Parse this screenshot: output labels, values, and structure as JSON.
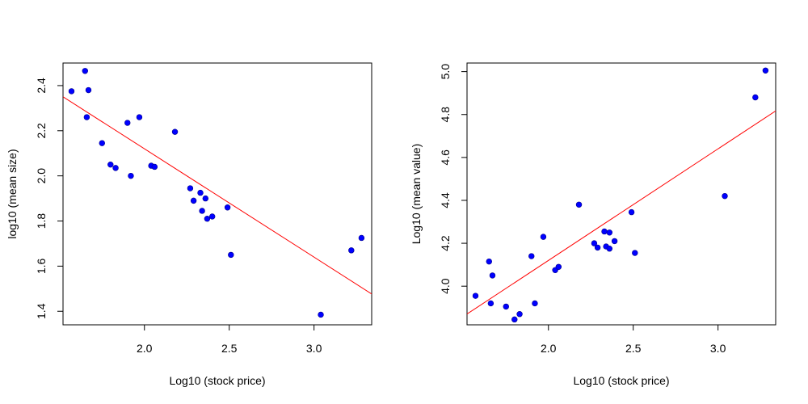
{
  "chart_data": [
    {
      "type": "scatter",
      "xlabel": "Log10 (stock price)",
      "ylabel": "log10 (mean size)",
      "xlim": [
        1.52,
        3.34
      ],
      "ylim": [
        1.34,
        2.5
      ],
      "x_ticks": [
        2.0,
        2.5,
        3.0
      ],
      "x_tick_labels": [
        "2.0",
        "2.5",
        "3.0"
      ],
      "y_ticks": [
        1.4,
        1.6,
        1.8,
        2.0,
        2.2,
        2.4
      ],
      "y_tick_labels": [
        "1.4",
        "1.6",
        "1.8",
        "2.0",
        "2.2",
        "2.4"
      ],
      "grid": false,
      "point_color": "#0000ff",
      "line_color": "#ff0000",
      "fit_line": {
        "intercept": 3.08,
        "slope": -0.48
      },
      "points": [
        {
          "x": 1.57,
          "y": 2.375
        },
        {
          "x": 1.65,
          "y": 2.465
        },
        {
          "x": 1.66,
          "y": 2.26
        },
        {
          "x": 1.67,
          "y": 2.38
        },
        {
          "x": 1.75,
          "y": 2.145
        },
        {
          "x": 1.8,
          "y": 2.05
        },
        {
          "x": 1.83,
          "y": 2.035
        },
        {
          "x": 1.9,
          "y": 2.235
        },
        {
          "x": 1.92,
          "y": 2.0
        },
        {
          "x": 1.97,
          "y": 2.26
        },
        {
          "x": 2.04,
          "y": 2.045
        },
        {
          "x": 2.06,
          "y": 2.04
        },
        {
          "x": 2.18,
          "y": 2.195
        },
        {
          "x": 2.27,
          "y": 1.945
        },
        {
          "x": 2.29,
          "y": 1.89
        },
        {
          "x": 2.33,
          "y": 1.925
        },
        {
          "x": 2.34,
          "y": 1.845
        },
        {
          "x": 2.36,
          "y": 1.9
        },
        {
          "x": 2.37,
          "y": 1.81
        },
        {
          "x": 2.4,
          "y": 1.82
        },
        {
          "x": 2.49,
          "y": 1.86
        },
        {
          "x": 2.51,
          "y": 1.65
        },
        {
          "x": 3.04,
          "y": 1.385
        },
        {
          "x": 3.22,
          "y": 1.67
        },
        {
          "x": 3.28,
          "y": 1.725
        }
      ]
    },
    {
      "type": "scatter",
      "xlabel": "Log10 (stock price)",
      "ylabel": "Log10 (mean value)",
      "xlim": [
        1.52,
        3.34
      ],
      "ylim": [
        3.82,
        5.04
      ],
      "x_ticks": [
        2.0,
        2.5,
        3.0
      ],
      "x_tick_labels": [
        "2.0",
        "2.5",
        "3.0"
      ],
      "y_ticks": [
        4.0,
        4.2,
        4.4,
        4.6,
        4.8,
        5.0
      ],
      "y_tick_labels": [
        "4.0",
        "4.2",
        "4.4",
        "4.6",
        "4.8",
        "5.0"
      ],
      "grid": false,
      "point_color": "#0000ff",
      "line_color": "#ff0000",
      "fit_line": {
        "intercept": 3.08,
        "slope": 0.52
      },
      "points": [
        {
          "x": 1.57,
          "y": 3.955
        },
        {
          "x": 1.65,
          "y": 4.115
        },
        {
          "x": 1.66,
          "y": 3.92
        },
        {
          "x": 1.67,
          "y": 4.05
        },
        {
          "x": 1.75,
          "y": 3.905
        },
        {
          "x": 1.8,
          "y": 3.845
        },
        {
          "x": 1.83,
          "y": 3.87
        },
        {
          "x": 1.9,
          "y": 4.14
        },
        {
          "x": 1.92,
          "y": 3.92
        },
        {
          "x": 1.97,
          "y": 4.23
        },
        {
          "x": 2.04,
          "y": 4.075
        },
        {
          "x": 2.06,
          "y": 4.09
        },
        {
          "x": 2.18,
          "y": 4.38
        },
        {
          "x": 2.27,
          "y": 4.2
        },
        {
          "x": 2.29,
          "y": 4.18
        },
        {
          "x": 2.33,
          "y": 4.255
        },
        {
          "x": 2.34,
          "y": 4.185
        },
        {
          "x": 2.36,
          "y": 4.175
        },
        {
          "x": 2.36,
          "y": 4.25
        },
        {
          "x": 2.39,
          "y": 4.21
        },
        {
          "x": 2.49,
          "y": 4.345
        },
        {
          "x": 2.51,
          "y": 4.155
        },
        {
          "x": 3.04,
          "y": 4.42
        },
        {
          "x": 3.22,
          "y": 4.88
        },
        {
          "x": 3.28,
          "y": 5.005
        }
      ]
    }
  ]
}
